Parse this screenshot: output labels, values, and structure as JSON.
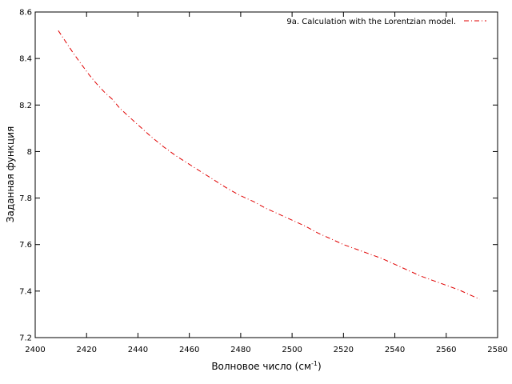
{
  "chart_data": {
    "type": "line",
    "title": "",
    "xlabel": "Волновое число (см",
    "xlabel_superscript": "-1",
    "xlabel_suffix": ")",
    "ylabel": "Заданная функция",
    "xlim": [
      2400,
      2580
    ],
    "ylim": [
      7.2,
      8.6
    ],
    "xticks": [
      2400,
      2420,
      2440,
      2460,
      2480,
      2500,
      2520,
      2540,
      2560,
      2580
    ],
    "yticks": [
      7.2,
      7.4,
      7.6,
      7.8,
      8,
      8.2,
      8.4,
      8.6
    ],
    "xtick_labels": [
      "2400",
      "2420",
      "2440",
      "2460",
      "2480",
      "2500",
      "2520",
      "2540",
      "2560",
      "2580"
    ],
    "ytick_labels": [
      "7.2",
      "7.4",
      "7.6",
      "7.8",
      "8",
      "8.2",
      "8.4",
      "8.6"
    ],
    "grid": false,
    "legend_position": "top-right",
    "series": [
      {
        "name": "9a. Calculation with the Lorentzian model.",
        "color": "#e00000",
        "style": "dash-dot",
        "x": [
          2409,
          2412,
          2415,
          2418,
          2421,
          2424,
          2427,
          2430,
          2433,
          2436,
          2440,
          2445,
          2450,
          2455,
          2460,
          2465,
          2470,
          2475,
          2480,
          2485,
          2490,
          2495,
          2500,
          2505,
          2510,
          2515,
          2520,
          2525,
          2530,
          2535,
          2540,
          2545,
          2550,
          2555,
          2560,
          2565,
          2570,
          2573
        ],
        "y": [
          8.52,
          8.47,
          8.42,
          8.375,
          8.33,
          8.29,
          8.255,
          8.225,
          8.185,
          8.155,
          8.115,
          8.065,
          8.02,
          7.98,
          7.945,
          7.91,
          7.875,
          7.84,
          7.81,
          7.785,
          7.755,
          7.73,
          7.705,
          7.68,
          7.65,
          7.625,
          7.6,
          7.58,
          7.56,
          7.54,
          7.515,
          7.49,
          7.465,
          7.445,
          7.425,
          7.405,
          7.38,
          7.365
        ]
      }
    ]
  }
}
